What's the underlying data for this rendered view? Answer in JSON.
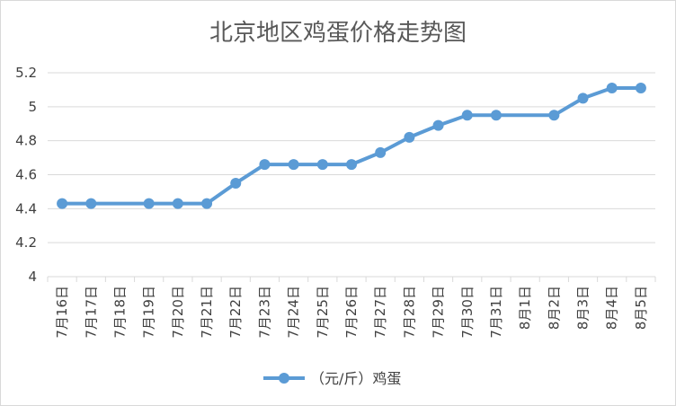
{
  "chart_data": {
    "type": "line",
    "title": "北京地区鸡蛋价格走势图",
    "xlabel": "",
    "ylabel": "",
    "categories": [
      "7月16日",
      "7月17日",
      "7月18日",
      "7月19日",
      "7月20日",
      "7月21日",
      "7月22日",
      "7月23日",
      "7月24日",
      "7月25日",
      "7月26日",
      "7月27日",
      "7月28日",
      "7月29日",
      "7月30日",
      "7月31日",
      "8月1日",
      "8月2日",
      "8月3日",
      "8月4日",
      "8月5日"
    ],
    "series": [
      {
        "name": "（元/斤）鸡蛋",
        "values": [
          4.43,
          4.43,
          null,
          4.43,
          4.43,
          4.43,
          4.55,
          4.66,
          4.66,
          4.66,
          4.66,
          4.73,
          4.82,
          4.89,
          4.95,
          4.95,
          null,
          4.95,
          5.05,
          5.11,
          5.11
        ],
        "color": "#5b9bd5"
      }
    ],
    "ylim": [
      4,
      5.2
    ],
    "yticks": [
      "4",
      "4.2",
      "4.4",
      "4.6",
      "4.8",
      "5",
      "5.2"
    ],
    "grid": true,
    "legend": "bottom",
    "gridColor": "#d9d9d9"
  }
}
